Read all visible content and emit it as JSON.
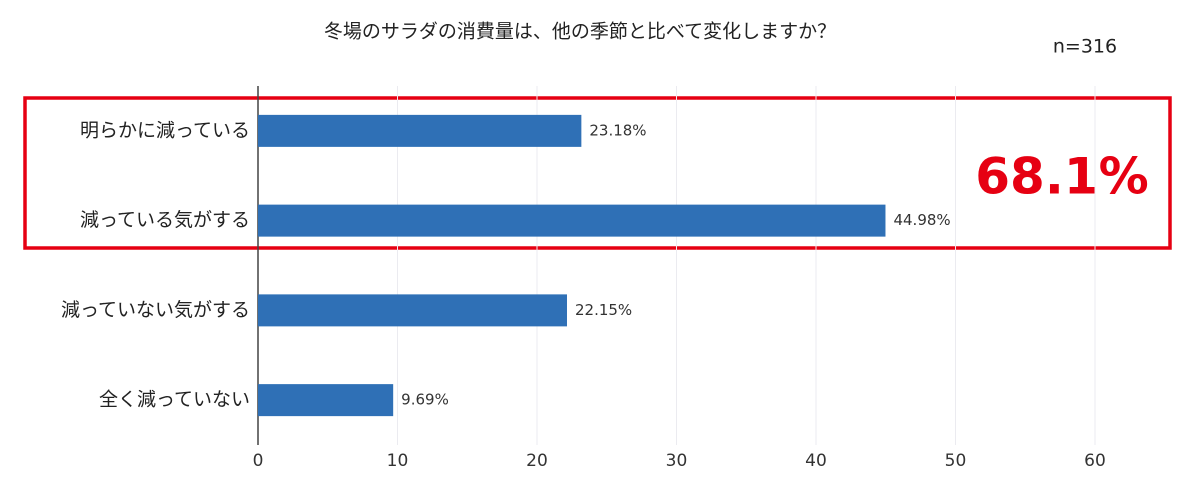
{
  "chart_data": {
    "type": "bar",
    "orientation": "horizontal",
    "title": "冬場のサラダの消費量は、他の季節と比べて変化しますか？",
    "sample_size": "n=316",
    "highlight": "68.1%",
    "categories": [
      "明らかに減っている",
      "減っている気がする",
      "減っていない気がする",
      "全く減っていない"
    ],
    "values": [
      23.18,
      44.98,
      22.15,
      9.69
    ],
    "value_labels": [
      "23.18%",
      "44.98%",
      "22.15%",
      "9.69%"
    ],
    "color": "#2f70b6",
    "xlim": [
      0,
      60
    ],
    "xticks": [
      0,
      10,
      20,
      30,
      40,
      50,
      60
    ],
    "grid": true
  }
}
